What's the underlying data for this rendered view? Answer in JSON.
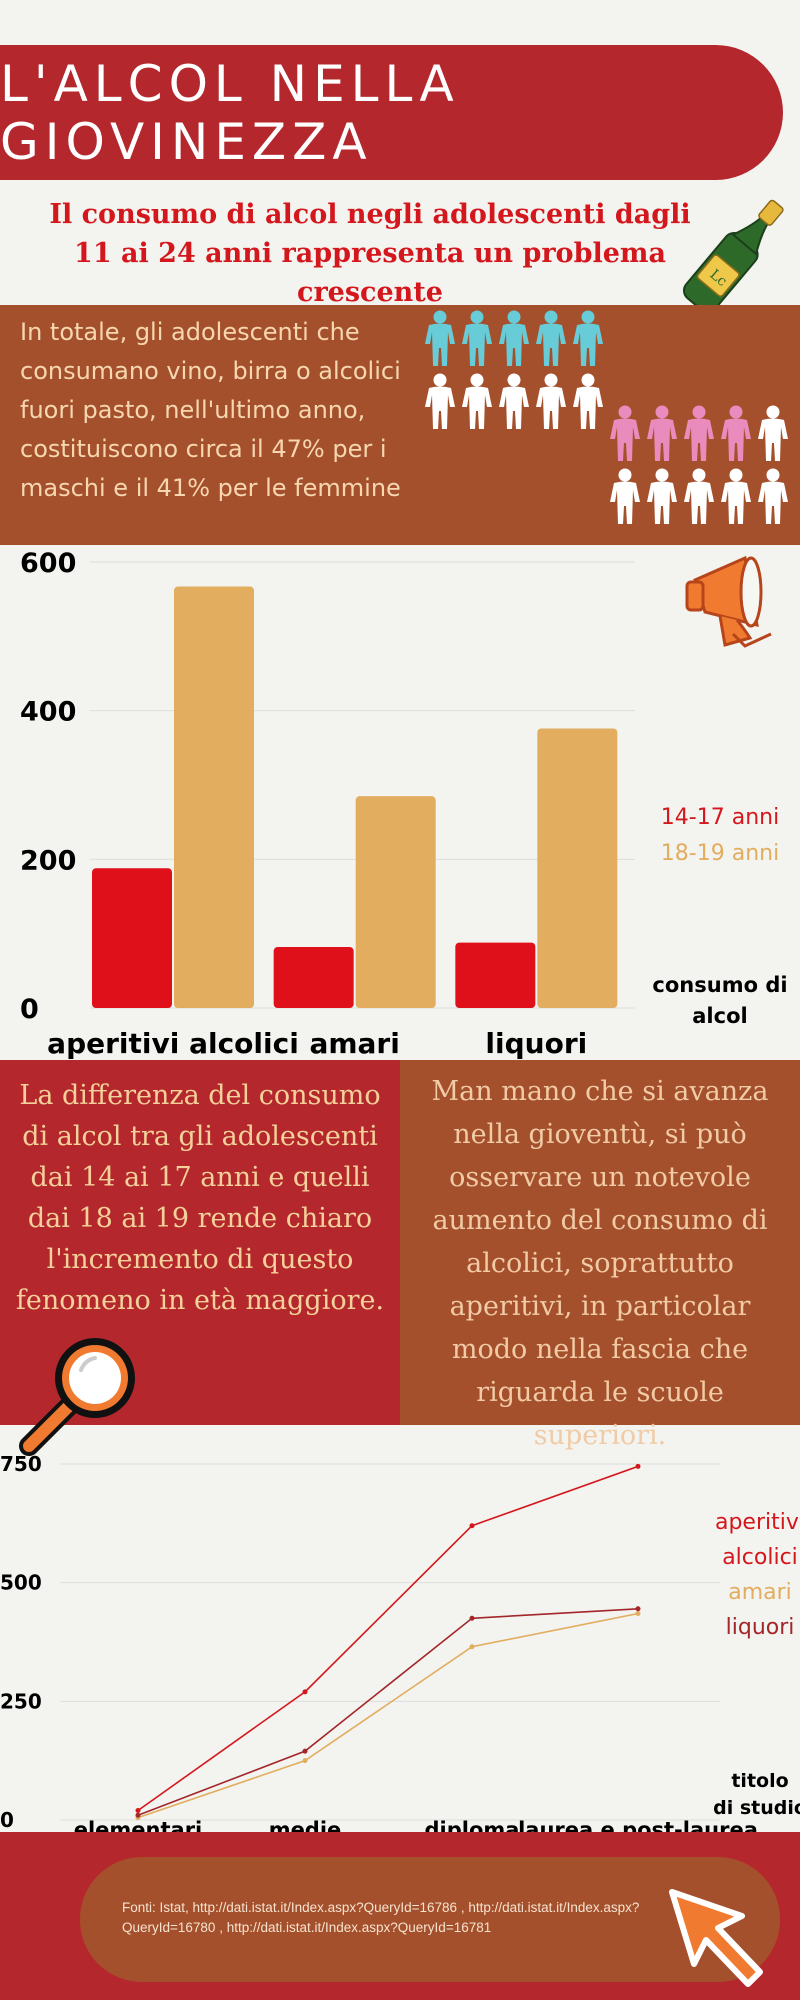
{
  "header": {
    "title": "L'ALCOL NELLA GIOVINEZZA",
    "subtitle": "Il consumo di alcol negli adolescenti dagli 11 ai 24 anni rappresenta un problema crescente"
  },
  "stat": {
    "text": "In totale, gli adolescenti che consumano vino, birra o alcolici fuori pasto, nell'ultimo anno, costituiscono circa il 47% per i maschi e il 41% per le femmine",
    "male_share_highlighted": "5 of 10 figures highlighted (blue)",
    "female_share_highlighted": "4 of 10 figures highlighted (pink)"
  },
  "colors": {
    "red": "#b4282d",
    "brown": "#a5502c",
    "bar_red": "#e0101a",
    "bar_gold": "#e2ad5e",
    "male_blue": "#67cbd8",
    "female_pink": "#e98bbd",
    "line_aperitivi": "#d4171d",
    "line_amari": "#e2ad5e",
    "line_liquori": "#a3262a"
  },
  "icons": [
    "champagne-bottle-icon",
    "person-icon",
    "megaphone-icon",
    "magnifier-icon",
    "cursor-arrow-icon"
  ],
  "chart_data": [
    {
      "type": "bar",
      "categories": [
        "aperitivi alcolici",
        "amari",
        "liquori"
      ],
      "series": [
        {
          "name": "14-17 anni",
          "values": [
            188,
            82,
            88
          ],
          "color": "#e0101a"
        },
        {
          "name": "18-19 anni",
          "values": [
            567,
            285,
            376
          ],
          "color": "#e2ad5e"
        }
      ],
      "ylim": [
        0,
        600
      ],
      "yticks": [
        "0",
        "200",
        "400",
        "600"
      ],
      "ylabel": "consumo di alcol",
      "grid": true,
      "legend_placement": "right"
    },
    {
      "type": "line",
      "categories": [
        "elementari",
        "medie",
        "diploma",
        "laurea e post-laurea"
      ],
      "series": [
        {
          "name": "aperitivi alcolici",
          "values": [
            20,
            270,
            620,
            745
          ],
          "color": "#d4171d"
        },
        {
          "name": "amari",
          "values": [
            5,
            125,
            365,
            435
          ],
          "color": "#e2ad5e"
        },
        {
          "name": "liquori",
          "values": [
            10,
            145,
            425,
            445
          ],
          "color": "#a3262a"
        }
      ],
      "ylim": [
        0,
        750
      ],
      "yticks": [
        "0",
        "250",
        "500",
        "750"
      ],
      "xlabel": "titolo di studio",
      "grid": true,
      "legend_placement": "right"
    }
  ],
  "charts": {
    "bar": {
      "legend": [
        "14-17 anni",
        "18-19 anni"
      ],
      "ylabel_line1": "consumo di",
      "ylabel_line2": "alcol"
    },
    "line": {
      "legend": [
        "aperitivi",
        "alcolici",
        "amari",
        "liquori"
      ],
      "xlabel_line1": "titolo",
      "xlabel_line2": "di studio"
    }
  },
  "boxes": {
    "left": "La differenza del consumo di alcol tra gli adolescenti dai 14 ai 17 anni e quelli dai 18 ai 19 rende chiaro l'incremento di questo fenomeno in età maggiore.",
    "right": "Man mano che si avanza nella gioventù, si può osservare un notevole aumento del consumo di alcolici, soprattutto aperitivi, in particolar modo nella fascia che riguarda le scuole superiori."
  },
  "footer": {
    "sources": "Fonti: Istat, http://dati.istat.it/Index.aspx?QueryId=16786 , http://dati.istat.it/Index.aspx?QueryId=16780 , http://dati.istat.it/Index.aspx?QueryId=16781"
  }
}
